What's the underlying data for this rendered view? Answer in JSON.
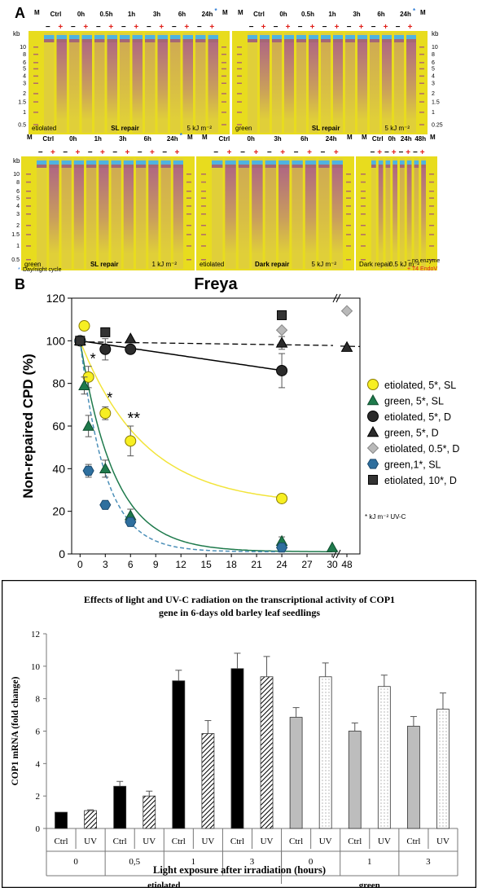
{
  "colors": {
    "gel_bg": "#e8dc1e",
    "gel_lane": "#c9a98a",
    "band_blue": "#4fb3e0",
    "smear": "#a0469a",
    "no_enzyme": "#000000",
    "t4_endo": "#e0201b",
    "yellow": "#f5ee1a",
    "green": "#1e7a4c",
    "black": "#2b2b2b",
    "grey": "#b9b9b9",
    "teal": "#2e6f9e",
    "square": "#333333"
  },
  "panelA": {
    "label": "A",
    "kb": "kb",
    "marker_ticks": [
      "10",
      "8",
      "6",
      "5",
      "4",
      "3",
      "2",
      "1.5",
      "1",
      "0.5"
    ],
    "marker_ticks_right": [
      "10",
      "8",
      "6",
      "5",
      "4",
      "3",
      "2",
      "1.5",
      "1",
      "0.25"
    ],
    "plus": "+",
    "minus": "−",
    "M": "M",
    "gels": [
      {
        "headers": [
          "Ctrl",
          "0h",
          "0.5h",
          "1h",
          "3h",
          "6h",
          "24h"
        ],
        "marks": [
          "*"
        ],
        "footer_left": "etiolated",
        "footer_mid": "SL repair",
        "footer_right": "5 kJ m⁻²"
      },
      {
        "headers": [
          "Ctrl",
          "0h",
          "0.5h",
          "1h",
          "3h",
          "6h",
          "24h"
        ],
        "marks": [
          "*"
        ],
        "footer_left": "green",
        "footer_mid": "SL repair",
        "footer_right": "5 kJ m⁻²"
      },
      {
        "headers": [
          "Ctrl",
          "0h",
          "1h",
          "3h",
          "6h",
          "24h"
        ],
        "marks": [
          "*"
        ],
        "footer_left": "green",
        "footer_mid": "SL repair",
        "footer_right": "1 kJ m⁻²"
      },
      {
        "headers": [
          "Ctrl",
          "0h",
          "3h",
          "6h",
          "24h"
        ],
        "footer_left": "etiolated",
        "footer_mid": "Dark repair",
        "footer_right": "5 kJ m⁻²"
      },
      {
        "headers": [
          "Ctrl",
          "0h",
          "24h",
          "48h"
        ],
        "footer_left": "Dark repair",
        "footer_right": "0.5 kJ m⁻²"
      }
    ],
    "daynight_note": "Day/night cycle",
    "legend_no_enzyme": "− no enzyme",
    "legend_t4": "+ T4 EndoV"
  },
  "chart_data": [
    {
      "type": "scatter",
      "panel_label": "B",
      "title": "Freya",
      "ylabel": "Non-repaired CPD (%)",
      "ylim": [
        0,
        120
      ],
      "yticks": [
        "0",
        "20",
        "40",
        "60",
        "80",
        "100",
        "120"
      ],
      "xticks": [
        "0",
        "3",
        "6",
        "9",
        "12",
        "15",
        "18",
        "21",
        "24",
        "27",
        "30",
        "48"
      ],
      "footnote": "* kJ m⁻² UV-C",
      "annotations": [
        "*",
        "*",
        "**"
      ],
      "series": [
        {
          "name": "etiolated, 5*, SL",
          "x": [
            0,
            0.5,
            1,
            3,
            6,
            24
          ],
          "y": [
            100,
            107,
            83,
            66,
            53,
            26
          ],
          "err": [
            0,
            0,
            5,
            3,
            7,
            0
          ]
        },
        {
          "name": "green, 5*, SL",
          "x": [
            0,
            0.5,
            1,
            3,
            6,
            24,
            30
          ],
          "y": [
            100,
            79,
            60,
            40,
            18,
            6,
            3
          ],
          "err": [
            0,
            4,
            5,
            4,
            3,
            2,
            0
          ]
        },
        {
          "name": "etiolated, 5*, D",
          "x": [
            0,
            3,
            6,
            24
          ],
          "y": [
            100,
            96,
            96,
            86
          ],
          "err": [
            0,
            5,
            0,
            8
          ]
        },
        {
          "name": "green, 5*, D",
          "x": [
            0,
            6,
            24,
            48
          ],
          "y": [
            100,
            101,
            99,
            97
          ],
          "err": [
            0,
            0,
            3,
            0
          ]
        },
        {
          "name": "etiolated, 0.5*, D",
          "x": [
            0,
            24,
            48
          ],
          "y": [
            100,
            105,
            114
          ],
          "err": [
            0,
            0,
            0
          ]
        },
        {
          "name": "green,1*, SL",
          "x": [
            0,
            1,
            3,
            6,
            24
          ],
          "y": [
            100,
            39,
            23,
            15,
            3
          ],
          "err": [
            0,
            3,
            0,
            0,
            0
          ]
        },
        {
          "name": "etiolated, 10*, D",
          "x": [
            0,
            3,
            24
          ],
          "y": [
            100,
            104,
            112
          ],
          "err": [
            0,
            0,
            0
          ]
        }
      ]
    },
    {
      "type": "bar",
      "title_line1": "Effects of light  and UV-C radiation  on the transcriptional  activity of COP1",
      "title_line2": "gene in 6-days old barley leaf seedlings",
      "ylabel": "COP1 mRNA (fold change)",
      "xlabel": "Light exposure after irradiation  (hours)",
      "ylim": [
        0,
        12
      ],
      "yticks": [
        "0",
        "2",
        "4",
        "6",
        "8",
        "10",
        "12"
      ],
      "categories": [
        "Ctrl",
        "UV",
        "Ctrl",
        "UV",
        "Ctrl",
        "UV",
        "Ctrl",
        "UV",
        "Ctrl",
        "UV",
        "Ctrl",
        "UV",
        "Ctrl",
        "UV"
      ],
      "time_groups": [
        "0",
        "0,5",
        "1",
        "3",
        "0",
        "1",
        "3"
      ],
      "condition_groups": [
        "etiolated",
        "green"
      ],
      "values": [
        1.0,
        1.1,
        2.6,
        2.0,
        9.1,
        5.85,
        9.85,
        9.35,
        6.85,
        9.35,
        6.0,
        8.75,
        6.3,
        7.35
      ],
      "errors": [
        0,
        0.05,
        0.3,
        0.3,
        0.65,
        0.8,
        0.95,
        1.25,
        0.6,
        0.85,
        0.5,
        0.7,
        0.6,
        1.0
      ],
      "styles": [
        "black",
        "hatch",
        "black",
        "hatch",
        "black",
        "hatch",
        "black",
        "hatch",
        "grey",
        "dots",
        "grey",
        "dots",
        "grey",
        "dots"
      ]
    }
  ]
}
